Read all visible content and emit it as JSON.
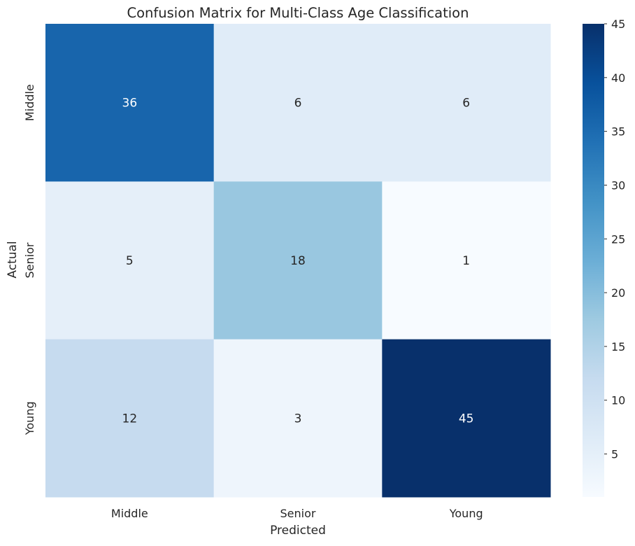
{
  "chart_data": {
    "type": "heatmap",
    "title": "Confusion Matrix for Multi-Class Age Classification",
    "xlabel": "Predicted",
    "ylabel": "Actual",
    "x_categories": [
      "Middle",
      "Senior",
      "Young"
    ],
    "y_categories": [
      "Middle",
      "Senior",
      "Young"
    ],
    "values": [
      [
        36,
        6,
        6
      ],
      [
        5,
        18,
        1
      ],
      [
        12,
        3,
        45
      ]
    ],
    "colormap": "Blues",
    "colorbar": {
      "min": 1,
      "max": 45,
      "ticks": [
        5,
        10,
        15,
        20,
        25,
        30,
        35,
        40,
        45
      ]
    },
    "grid": false
  }
}
